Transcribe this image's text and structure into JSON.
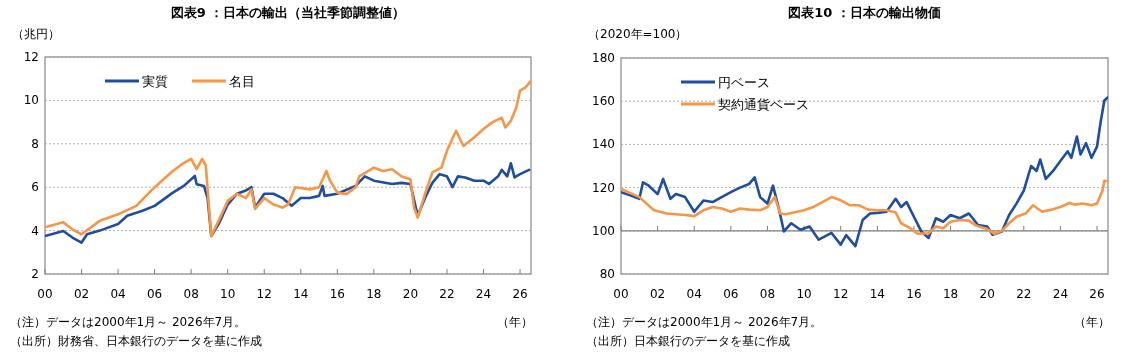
{
  "chart_data": [
    {
      "type": "line",
      "title": "図表9 ：日本の輸出（当社季節調整値）",
      "ylabel": "（兆円）",
      "xlabel": "（年）",
      "xlim": [
        2000,
        2026.6
      ],
      "ylim": [
        2,
        12
      ],
      "xticks": [
        {
          "value": 2000,
          "label": "00"
        },
        {
          "value": 2002,
          "label": "02"
        },
        {
          "value": 2004,
          "label": "04"
        },
        {
          "value": 2006,
          "label": "06"
        },
        {
          "value": 2008,
          "label": "08"
        },
        {
          "value": 2010,
          "label": "10"
        },
        {
          "value": 2012,
          "label": "12"
        },
        {
          "value": 2014,
          "label": "14"
        },
        {
          "value": 2016,
          "label": "16"
        },
        {
          "value": 2018,
          "label": "18"
        },
        {
          "value": 2020,
          "label": "20"
        },
        {
          "value": 2022,
          "label": "22"
        },
        {
          "value": 2024,
          "label": "24"
        },
        {
          "value": 2026,
          "label": "26"
        }
      ],
      "yticks": [
        2,
        4,
        6,
        8,
        10,
        12
      ],
      "grid": "y",
      "legend": "top left",
      "annotations": [
        "（注）データは2000年1月～ 2026年7月。",
        "（出所）財務省、日本銀行のデータを基に作成"
      ],
      "series": [
        {
          "name": "実質",
          "color": "#1f4e9f",
          "x": [
            2000,
            2001,
            2001.5,
            2002,
            2002.3,
            2003,
            2004,
            2004.5,
            2005.3,
            2006,
            2007,
            2007.6,
            2008.2,
            2008.3,
            2008.7,
            2008.9,
            2009.1,
            2009.5,
            2010,
            2010.5,
            2011,
            2011.3,
            2011.5,
            2012,
            2012.5,
            2013,
            2013.5,
            2014,
            2014.5,
            2015,
            2015.2,
            2015.3,
            2016,
            2017,
            2017.5,
            2018,
            2019,
            2019.5,
            2020,
            2020.4,
            2020.8,
            2021.2,
            2021.6,
            2022,
            2022.3,
            2022.6,
            2023,
            2023.5,
            2024,
            2024.3,
            2024.8,
            2025,
            2025.3,
            2025.5,
            2025.7,
            2026,
            2026.5
          ],
          "values": [
            3.75,
            3.98,
            3.68,
            3.45,
            3.83,
            4.0,
            4.3,
            4.68,
            4.9,
            5.14,
            5.75,
            6.06,
            6.52,
            6.14,
            6.06,
            5.5,
            3.75,
            4.3,
            5.2,
            5.7,
            5.85,
            6.0,
            5.06,
            5.7,
            5.7,
            5.5,
            5.14,
            5.5,
            5.5,
            5.6,
            6.06,
            5.6,
            5.7,
            6.06,
            6.5,
            6.3,
            6.15,
            6.2,
            6.15,
            4.68,
            5.5,
            6.2,
            6.6,
            6.5,
            6.0,
            6.5,
            6.45,
            6.3,
            6.3,
            6.15,
            6.5,
            6.8,
            6.5,
            7.1,
            6.45,
            6.6,
            6.8
          ]
        },
        {
          "name": "名目",
          "color": "#f79646",
          "x": [
            2000,
            2001,
            2001.5,
            2002,
            2003,
            2004,
            2005,
            2006,
            2007,
            2007.5,
            2008,
            2008.3,
            2008.6,
            2008.8,
            2009.1,
            2009.5,
            2010,
            2010.5,
            2011,
            2011.3,
            2011.5,
            2012,
            2012.5,
            2013,
            2013.3,
            2013.7,
            2014.5,
            2015,
            2015.4,
            2015.6,
            2016,
            2016.5,
            2017,
            2017.2,
            2018,
            2018.5,
            2019,
            2019.5,
            2020,
            2020.2,
            2020.4,
            2020.8,
            2021.2,
            2021.7,
            2022,
            2022.5,
            2022.9,
            2023.5,
            2024,
            2024.5,
            2025,
            2025.2,
            2025.5,
            2025.8,
            2026,
            2026.3,
            2026.6
          ],
          "values": [
            4.15,
            4.38,
            4.06,
            3.83,
            4.45,
            4.75,
            5.14,
            6.0,
            6.75,
            7.06,
            7.3,
            6.83,
            7.3,
            7.0,
            3.75,
            4.45,
            5.37,
            5.7,
            5.5,
            5.9,
            5.0,
            5.5,
            5.2,
            5.06,
            5.2,
            6.0,
            5.9,
            6.0,
            6.75,
            6.3,
            5.75,
            5.68,
            6.0,
            6.5,
            6.9,
            6.75,
            6.83,
            6.5,
            6.37,
            5.06,
            4.6,
            5.68,
            6.68,
            6.9,
            7.68,
            8.6,
            7.9,
            8.3,
            8.68,
            9.0,
            9.2,
            8.75,
            9.06,
            9.68,
            10.45,
            10.6,
            10.9
          ]
        }
      ]
    },
    {
      "type": "line",
      "title": "図表10 ：日本の輸出物価",
      "ylabel": "（2020年=100）",
      "xlabel": "（年）",
      "xlim": [
        2000,
        2026.6
      ],
      "ylim": [
        80,
        180
      ],
      "xticks": [
        {
          "value": 2000,
          "label": "00"
        },
        {
          "value": 2002,
          "label": "02"
        },
        {
          "value": 2004,
          "label": "04"
        },
        {
          "value": 2006,
          "label": "06"
        },
        {
          "value": 2008,
          "label": "08"
        },
        {
          "value": 2010,
          "label": "10"
        },
        {
          "value": 2012,
          "label": "12"
        },
        {
          "value": 2014,
          "label": "14"
        },
        {
          "value": 2016,
          "label": "16"
        },
        {
          "value": 2018,
          "label": "18"
        },
        {
          "value": 2020,
          "label": "20"
        },
        {
          "value": 2022,
          "label": "22"
        },
        {
          "value": 2024,
          "label": "24"
        },
        {
          "value": 2026,
          "label": "26"
        }
      ],
      "yticks": [
        80,
        100,
        120,
        140,
        160,
        180
      ],
      "grid": "y",
      "legend": "top left",
      "ref_lines": [
        {
          "axis": "y",
          "value": 100,
          "color": "#808080"
        }
      ],
      "annotations": [
        "（注）データは2000年1月～ 2026年7月。",
        "（出所）日本銀行のデータを基に作成"
      ],
      "series": [
        {
          "name": "円ベース",
          "color": "#1f4e9f",
          "x": [
            2000,
            2000.5,
            2001,
            2001.2,
            2001.5,
            2002,
            2002.3,
            2002.7,
            2003,
            2003.5,
            2004,
            2004.5,
            2005,
            2005.5,
            2006,
            2006.5,
            2007,
            2007.3,
            2007.6,
            2008,
            2008.3,
            2008.6,
            2008.9,
            2009.3,
            2009.8,
            2010.3,
            2010.8,
            2011.5,
            2012,
            2012.3,
            2012.8,
            2013.2,
            2013.6,
            2014,
            2014.5,
            2015,
            2015.3,
            2015.6,
            2016,
            2016.4,
            2016.8,
            2017.2,
            2017.6,
            2018,
            2018.5,
            2019,
            2019.5,
            2020,
            2020.3,
            2020.8,
            2021.2,
            2021.6,
            2022,
            2022.4,
            2022.7,
            2022.9,
            2023.2,
            2023.6,
            2024,
            2024.4,
            2024.6,
            2024.9,
            2025.1,
            2025.4,
            2025.7,
            2026,
            2026.2,
            2026.4,
            2026.6
          ],
          "values": [
            117.9,
            116.4,
            114.8,
            122.4,
            121,
            117,
            124,
            114.8,
            117,
            115.6,
            108.8,
            114,
            113.3,
            115.6,
            117.9,
            120,
            121.7,
            124.7,
            115.6,
            112.6,
            120.9,
            111,
            99.7,
            103.5,
            100.5,
            102,
            95.9,
            99,
            93.6,
            98,
            92.9,
            105,
            108,
            108.3,
            108.8,
            114.8,
            111,
            113.3,
            106.5,
            99.7,
            96.7,
            105.8,
            104.2,
            107.3,
            105.8,
            108,
            102.7,
            102,
            98.2,
            99.7,
            107.3,
            112.6,
            118.6,
            130,
            127.7,
            133,
            124,
            127.7,
            132.3,
            136.8,
            133.8,
            143.6,
            135.3,
            140.6,
            133.8,
            139,
            150.5,
            160.3,
            161.8
          ]
        },
        {
          "name": "契約通貨ベース",
          "color": "#f79646",
          "x": [
            2000,
            2001,
            2001.8,
            2002.5,
            2003.5,
            2004,
            2004.5,
            2005,
            2005.5,
            2006,
            2006.5,
            2007,
            2007.6,
            2008,
            2008.4,
            2008.7,
            2009,
            2010,
            2010.5,
            2011,
            2011.5,
            2012,
            2012.5,
            2013,
            2013.5,
            2014,
            2014.5,
            2015,
            2015.3,
            2015.8,
            2016.2,
            2016.8,
            2017.2,
            2017.6,
            2018,
            2018.5,
            2019,
            2019.4,
            2020,
            2020.4,
            2020.8,
            2021.2,
            2021.6,
            2022.1,
            2022.5,
            2023,
            2023.5,
            2024,
            2024.5,
            2024.8,
            2025.2,
            2025.7,
            2026,
            2026.3,
            2026.4,
            2026.6
          ],
          "values": [
            119.4,
            115.6,
            109.5,
            108,
            107.3,
            106.8,
            109.5,
            111,
            110.3,
            108.8,
            110.3,
            109.8,
            109.5,
            111,
            115.6,
            108,
            107.7,
            109.5,
            111,
            113.3,
            115.6,
            114.1,
            111.8,
            111.8,
            109.8,
            109.5,
            109.5,
            108.5,
            103.5,
            101.2,
            98.6,
            98.9,
            102,
            101.2,
            104.2,
            105,
            104.7,
            102.4,
            100.8,
            98.6,
            100,
            103.5,
            106.5,
            108,
            111.8,
            108.8,
            109.8,
            111,
            112.9,
            112.1,
            112.6,
            111.8,
            112.6,
            118.6,
            123.2,
            122.9
          ]
        }
      ]
    }
  ]
}
